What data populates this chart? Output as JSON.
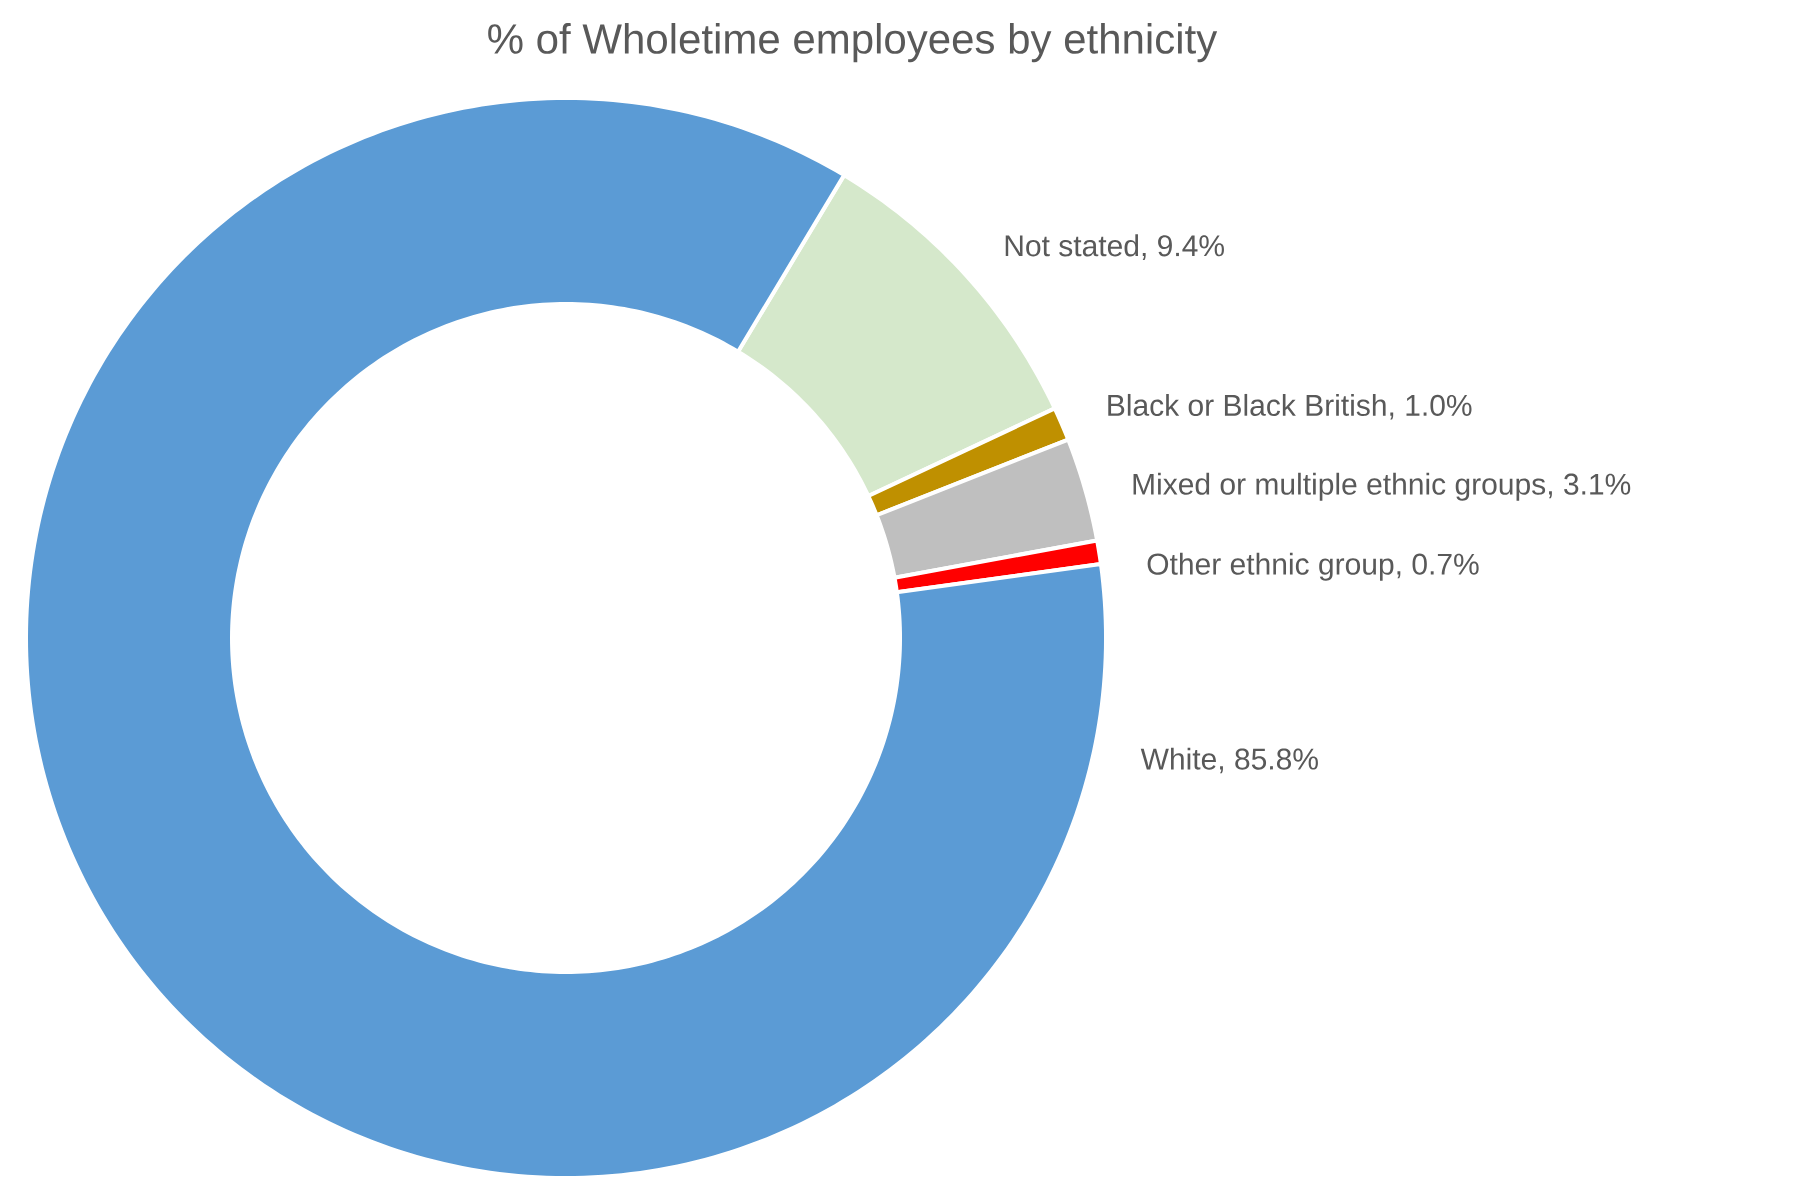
{
  "chart_data": {
    "type": "donut",
    "title": "% of Wholetime employees by ethnicity",
    "categories": [
      "Not stated",
      "Black or Black British",
      "Mixed or multiple ethnic groups",
      "Other ethnic group",
      "White"
    ],
    "values": [
      9.4,
      1.0,
      3.1,
      0.7,
      85.8
    ],
    "value_labels": [
      ", 9.4%",
      ", 1.0%",
      ", 3.1%",
      ", 0.7%",
      ", 85.8%"
    ],
    "colors": [
      "#d5e8cb",
      "#bf9000",
      "#bfbfbf",
      "#ff0000",
      "#5b9bd5"
    ]
  }
}
